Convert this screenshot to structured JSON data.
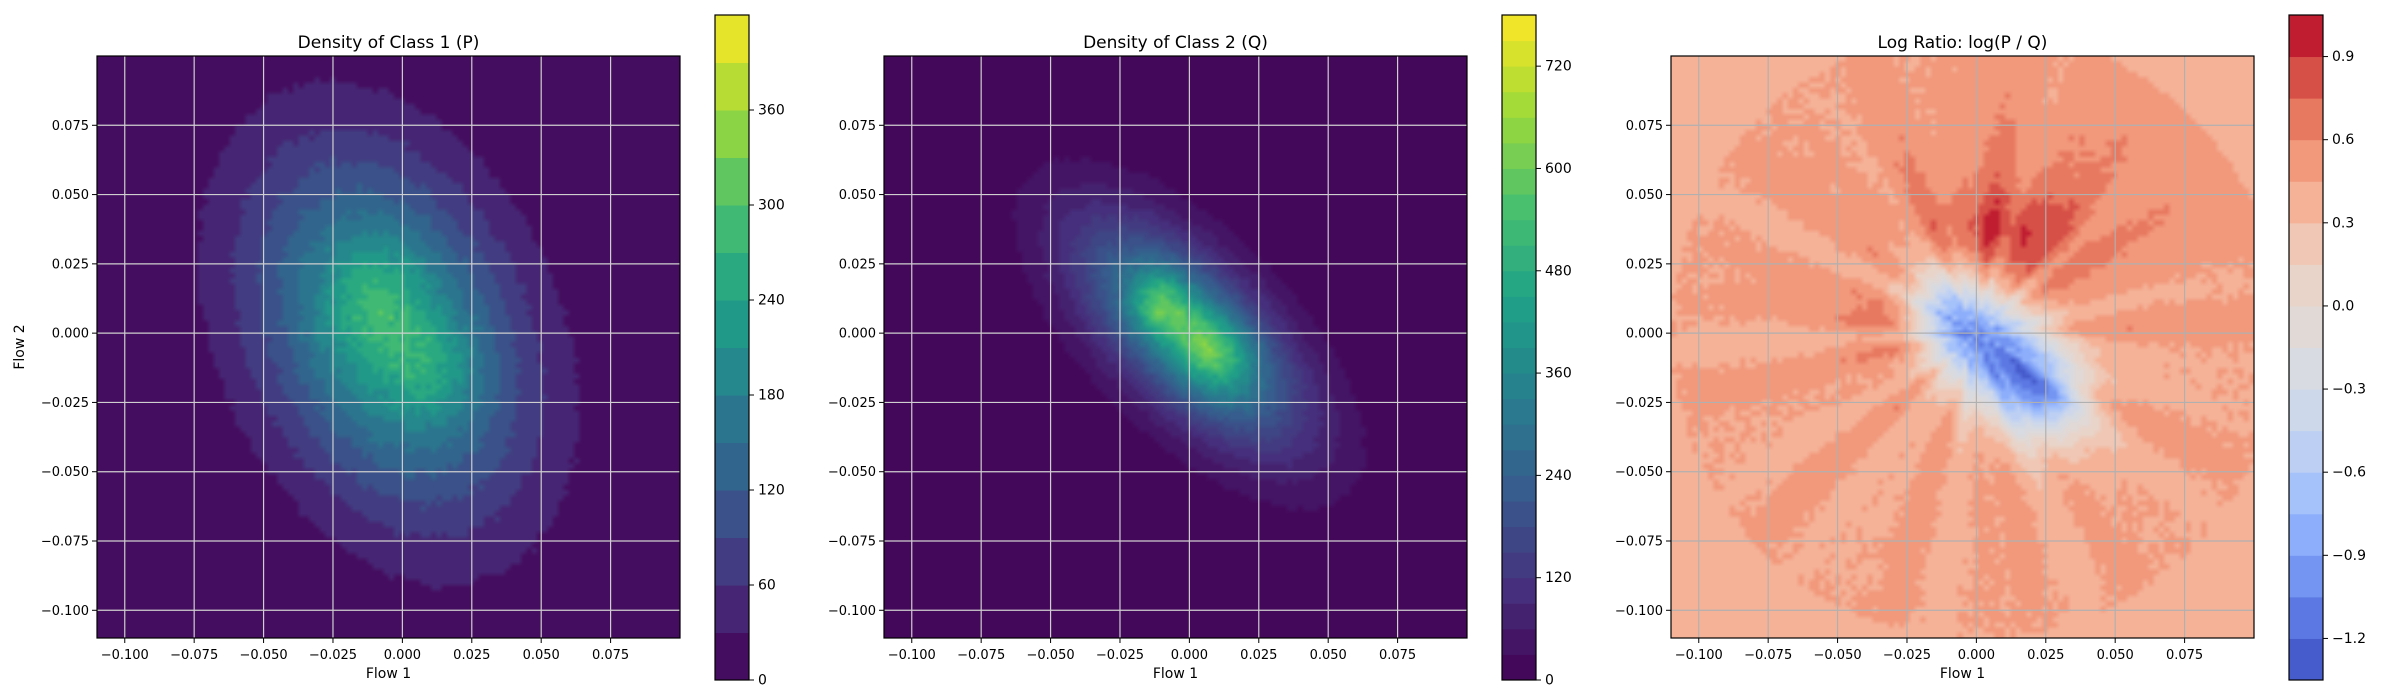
{
  "chart_data": [
    {
      "type": "heatmap",
      "title": "Density of Class 1 (P)",
      "xlabel": "Flow 1",
      "ylabel": "Flow 2",
      "xlim": [
        -0.11,
        0.1
      ],
      "ylim": [
        -0.11,
        0.1
      ],
      "xticks": [
        -0.1,
        -0.075,
        -0.05,
        -0.025,
        0.0,
        0.025,
        0.05,
        0.075
      ],
      "xtick_labels": [
        "−0.100",
        "−0.075",
        "−0.050",
        "−0.025",
        "0.000",
        "0.025",
        "0.050",
        "0.075"
      ],
      "yticks": [
        -0.1,
        -0.075,
        -0.05,
        -0.025,
        0.0,
        0.025,
        0.05,
        0.075
      ],
      "ytick_labels": [
        "−0.100",
        "−0.075",
        "−0.050",
        "−0.025",
        "0.000",
        "0.025",
        "0.050",
        "0.075"
      ],
      "grid": true,
      "colormap": "viridis",
      "colorbar": {
        "range": [
          0,
          420
        ],
        "ticks": [
          0,
          60,
          120,
          180,
          240,
          300,
          360
        ],
        "tick_labels": [
          "0",
          "60",
          "120",
          "180",
          "240",
          "300",
          "360"
        ],
        "levels": 14,
        "level_colors": [
          "#440154",
          "#46327e",
          "#365c8d",
          "#277f8e",
          "#1fa187",
          "#4ac16d",
          "#a0da39",
          "#fde725"
        ]
      },
      "blobs": [
        {
          "cx": -0.005,
          "cy": 0.0,
          "sx": 0.034,
          "sy": 0.045,
          "rho": -0.3,
          "amp": 230
        },
        {
          "cx": -0.01,
          "cy": 0.012,
          "sx": 0.012,
          "sy": 0.014,
          "rho": 0.0,
          "amp": 60
        },
        {
          "cx": 0.01,
          "cy": -0.012,
          "sx": 0.012,
          "sy": 0.013,
          "rho": 0.0,
          "amp": 50
        }
      ]
    },
    {
      "type": "heatmap",
      "title": "Density of Class 2 (Q)",
      "xlabel": "Flow 1",
      "ylabel": "",
      "xlim": [
        -0.11,
        0.1
      ],
      "ylim": [
        -0.11,
        0.1
      ],
      "xticks": [
        -0.1,
        -0.075,
        -0.05,
        -0.025,
        0.0,
        0.025,
        0.05,
        0.075
      ],
      "xtick_labels": [
        "−0.100",
        "−0.075",
        "−0.050",
        "−0.025",
        "0.000",
        "0.025",
        "0.050",
        "0.075"
      ],
      "yticks": [
        -0.1,
        -0.075,
        -0.05,
        -0.025,
        0.0,
        0.025,
        0.05,
        0.075
      ],
      "ytick_labels": [
        "−0.100",
        "−0.075",
        "−0.050",
        "−0.025",
        "0.000",
        "0.025",
        "0.050",
        "0.075"
      ],
      "grid": true,
      "colormap": "viridis",
      "colorbar": {
        "range": [
          0,
          780
        ],
        "ticks": [
          0,
          120,
          240,
          360,
          480,
          600,
          720
        ],
        "tick_labels": [
          "0",
          "120",
          "240",
          "360",
          "480",
          "600",
          "720"
        ],
        "levels": 26,
        "level_colors": [
          "#440154",
          "#46327e",
          "#365c8d",
          "#277f8e",
          "#1fa187",
          "#4ac16d",
          "#a0da39",
          "#fde725"
        ]
      },
      "blobs": [
        {
          "cx": 0.0,
          "cy": 0.0,
          "sx": 0.028,
          "sy": 0.028,
          "rho": -0.65,
          "amp": 380
        },
        {
          "cx": -0.011,
          "cy": 0.011,
          "sx": 0.007,
          "sy": 0.008,
          "rho": 0.0,
          "amp": 220
        },
        {
          "cx": 0.005,
          "cy": -0.003,
          "sx": 0.009,
          "sy": 0.009,
          "rho": -0.3,
          "amp": 200
        },
        {
          "cx": 0.012,
          "cy": -0.012,
          "sx": 0.01,
          "sy": 0.01,
          "rho": 0.0,
          "amp": 80
        }
      ]
    },
    {
      "type": "heatmap",
      "title": "Log Ratio: log(P / Q)",
      "xlabel": "Flow 1",
      "ylabel": "",
      "xlim": [
        -0.11,
        0.1
      ],
      "ylim": [
        -0.11,
        0.1
      ],
      "xticks": [
        -0.1,
        -0.075,
        -0.05,
        -0.025,
        0.0,
        0.025,
        0.05,
        0.075
      ],
      "xtick_labels": [
        "−0.100",
        "−0.075",
        "−0.050",
        "−0.025",
        "0.000",
        "0.025",
        "0.050",
        "0.075"
      ],
      "yticks": [
        -0.1,
        -0.075,
        -0.05,
        -0.025,
        0.0,
        0.025,
        0.05,
        0.075
      ],
      "ytick_labels": [
        "−0.100",
        "−0.075",
        "−0.050",
        "−0.025",
        "0.000",
        "0.025",
        "0.050",
        "0.075"
      ],
      "grid": true,
      "colormap": "coolwarm",
      "colorbar": {
        "range": [
          -1.35,
          1.05
        ],
        "ticks": [
          -1.2,
          -0.9,
          -0.6,
          -0.3,
          0.0,
          0.3,
          0.6,
          0.9
        ],
        "tick_labels": [
          "−1.2",
          "−0.9",
          "−0.6",
          "−0.3",
          "0.0",
          "0.3",
          "0.6",
          "0.9"
        ],
        "levels": 16,
        "level_colors": [
          "#3b4cc0",
          "#6788ee",
          "#9abbff",
          "#c9d7f0",
          "#dddcdc",
          "#edd1c2",
          "#f7a889",
          "#e26952",
          "#b40426"
        ]
      },
      "base": 0.45,
      "blobs": [
        {
          "cx": 0.008,
          "cy": -0.008,
          "sx": 0.018,
          "sy": 0.018,
          "rho": -0.55,
          "amp": -1.5
        },
        {
          "cx": -0.012,
          "cy": 0.008,
          "sx": 0.008,
          "sy": 0.01,
          "rho": -0.2,
          "amp": -0.5
        },
        {
          "cx": 0.025,
          "cy": -0.022,
          "sx": 0.01,
          "sy": 0.01,
          "rho": 0.0,
          "amp": -0.5
        },
        {
          "cx": 0.01,
          "cy": 0.035,
          "sx": 0.02,
          "sy": 0.013,
          "rho": 0.0,
          "amp": 0.35
        },
        {
          "cx": -0.03,
          "cy": 0.005,
          "sx": 0.014,
          "sy": 0.011,
          "rho": 0.0,
          "amp": 0.2
        },
        {
          "cx": 0.03,
          "cy": 0.055,
          "sx": 0.05,
          "sy": 0.03,
          "rho": 0.0,
          "amp": 0.12
        }
      ],
      "outer_value": 0.3
    }
  ]
}
